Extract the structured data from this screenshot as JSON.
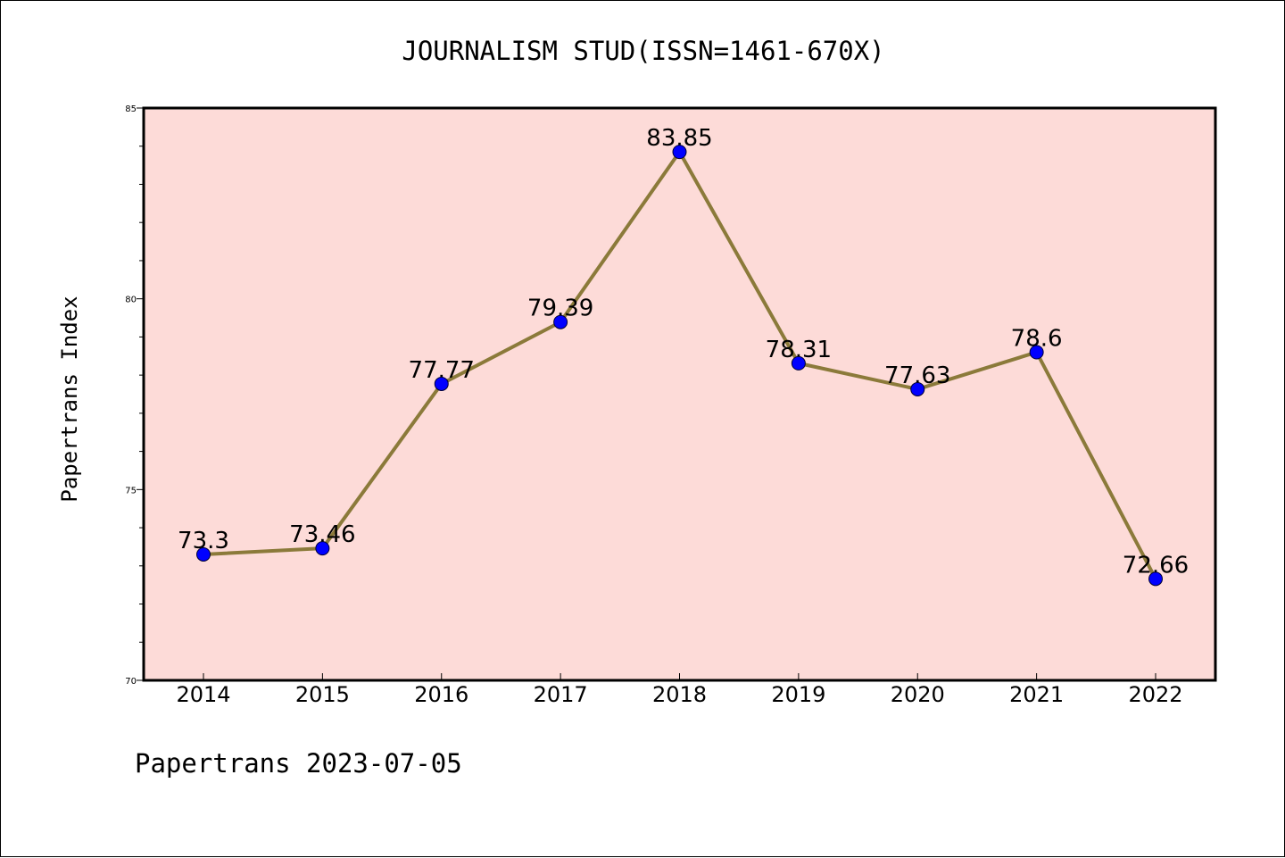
{
  "chart_data": {
    "type": "line",
    "title": "JOURNALISM STUD(ISSN=1461-670X)",
    "xlabel": "",
    "ylabel": "Papertrans Index",
    "categories": [
      "2014",
      "2015",
      "2016",
      "2017",
      "2018",
      "2019",
      "2020",
      "2021",
      "2022"
    ],
    "series": [
      {
        "values": [
          73.3,
          73.46,
          77.77,
          79.39,
          83.85,
          78.31,
          77.63,
          78.6,
          72.66
        ],
        "labels": [
          "73.3",
          "73.46",
          "77.77",
          "79.39",
          "83.85",
          "78.31",
          "77.63",
          "78.6",
          "72.66"
        ],
        "line_color": "#8b7a3a",
        "marker_color": "#0000ff"
      }
    ],
    "ylim": [
      70,
      85
    ],
    "yticks": [
      70,
      75,
      80,
      85
    ],
    "y_minor_step": 1,
    "plot_background": "#fddbd8",
    "grid": false,
    "legend": "none"
  },
  "footer": "Papertrans 2023-07-05"
}
